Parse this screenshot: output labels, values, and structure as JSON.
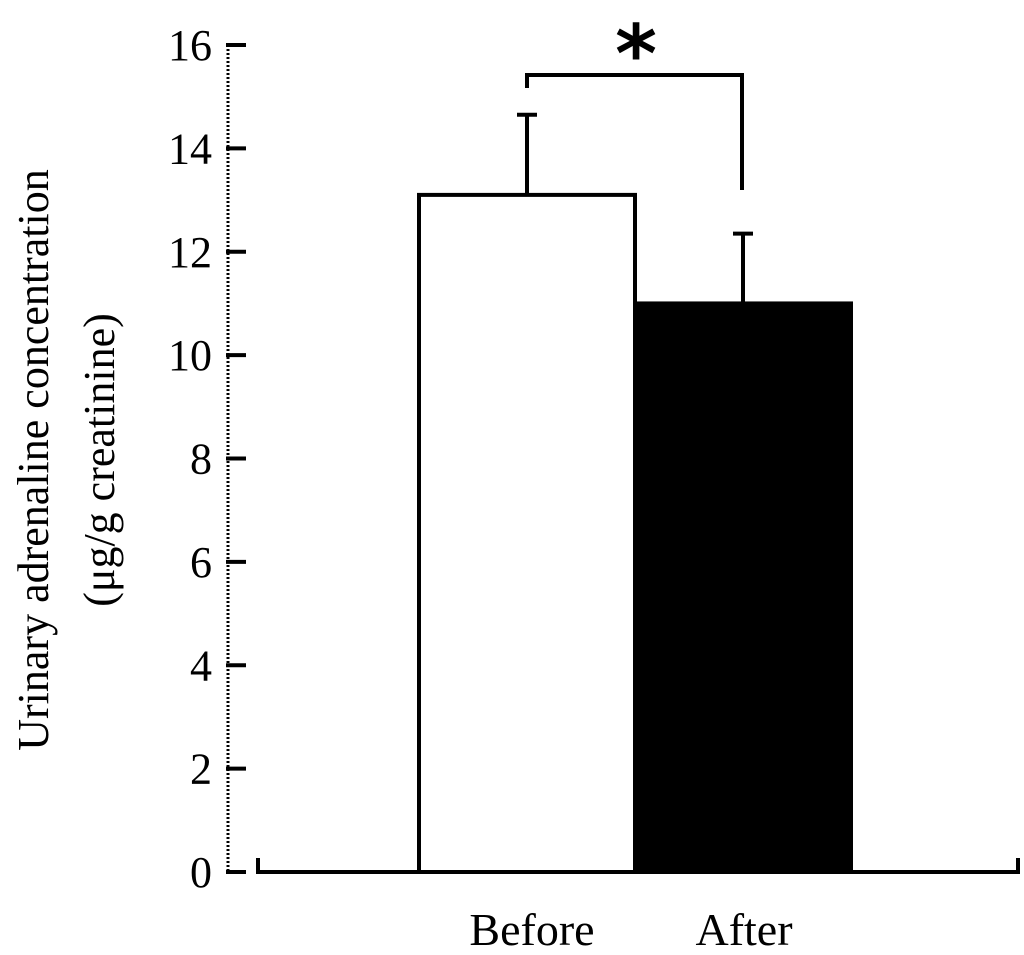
{
  "chart_data": {
    "type": "bar",
    "title": "",
    "categories": [
      "Before",
      "After"
    ],
    "values": [
      13.1,
      11.0
    ],
    "errors": [
      1.55,
      1.35
    ],
    "colors": [
      "#ffffff",
      "#000000"
    ],
    "ylabel_line1": "Urinary adrenaline concentration",
    "ylabel_line2": "(μg/g creatinine)",
    "xlabel": "",
    "ylim": [
      0,
      16
    ],
    "yticks": [
      0,
      2,
      4,
      6,
      8,
      10,
      12,
      14,
      16
    ],
    "significance": {
      "label": "*",
      "between": [
        0,
        1
      ]
    },
    "grid": false,
    "legend": "none"
  }
}
